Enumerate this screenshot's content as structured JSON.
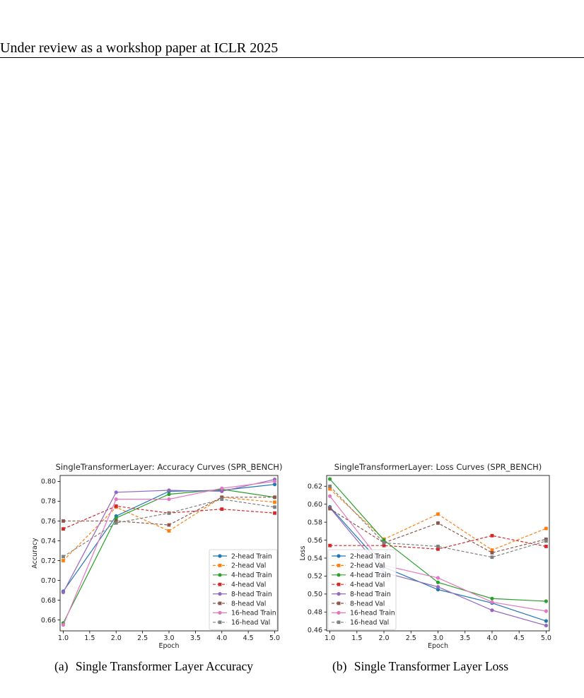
{
  "header": {
    "text": "Under review as a workshop paper at ICLR 2025"
  },
  "captions": [
    {
      "label": "(a)",
      "text": "Single Transformer Layer Accuracy"
    },
    {
      "label": "(b)",
      "text": "Single Transformer Layer Loss"
    }
  ],
  "colors": {
    "2-head": "#1f77b4",
    "4-head": "#2ca02c",
    "8-head": "#9467bd",
    "16-head": "#e377c2",
    "2-head-val": "#ff7f0e",
    "4-head-val": "#d62728",
    "8-head-val": "#8c564b",
    "16-head-val": "#7f7f7f"
  },
  "chart_data": [
    {
      "type": "line",
      "title": "SingleTransformerLayer: Accuracy Curves (SPR_BENCH)",
      "xlabel": "Epoch",
      "ylabel": "Accuracy",
      "xlim": [
        0.94,
        5.06
      ],
      "ylim": [
        0.649,
        0.806
      ],
      "xticks": [
        1.0,
        1.5,
        2.0,
        2.5,
        3.0,
        3.5,
        4.0,
        4.5,
        5.0
      ],
      "yticks": [
        0.66,
        0.68,
        0.7,
        0.72,
        0.74,
        0.76,
        0.78,
        0.8
      ],
      "xtick_labels": [
        "1.0",
        "1.5",
        "2.0",
        "2.5",
        "3.0",
        "3.5",
        "4.0",
        "4.5",
        "5.0"
      ],
      "ytick_labels": [
        "0.66",
        "0.68",
        "0.70",
        "0.72",
        "0.74",
        "0.76",
        "0.78",
        "0.80"
      ],
      "legend_position": "lower-right",
      "grid": false,
      "x": [
        1,
        2,
        3,
        4,
        5
      ],
      "series": [
        {
          "name": "2-head Train",
          "color": "#1f77b4",
          "dashed": false,
          "marker": "circle",
          "values": [
            0.689,
            0.765,
            0.79,
            0.791,
            0.797
          ]
        },
        {
          "name": "2-head Val",
          "color": "#ff7f0e",
          "dashed": true,
          "marker": "square",
          "values": [
            0.72,
            0.774,
            0.75,
            0.784,
            0.779
          ]
        },
        {
          "name": "4-head Train",
          "color": "#2ca02c",
          "dashed": false,
          "marker": "circle",
          "values": [
            0.657,
            0.763,
            0.787,
            0.792,
            0.784
          ]
        },
        {
          "name": "4-head Val",
          "color": "#d62728",
          "dashed": true,
          "marker": "square",
          "values": [
            0.752,
            0.775,
            0.768,
            0.772,
            0.768
          ]
        },
        {
          "name": "8-head Train",
          "color": "#9467bd",
          "dashed": false,
          "marker": "circle",
          "values": [
            0.688,
            0.789,
            0.791,
            0.79,
            0.802
          ]
        },
        {
          "name": "8-head Val",
          "color": "#8c564b",
          "dashed": true,
          "marker": "square",
          "values": [
            0.76,
            0.76,
            0.756,
            0.784,
            0.784
          ]
        },
        {
          "name": "16-head Train",
          "color": "#e377c2",
          "dashed": false,
          "marker": "circle",
          "values": [
            0.655,
            0.782,
            0.782,
            0.793,
            0.8
          ]
        },
        {
          "name": "16-head Val",
          "color": "#7f7f7f",
          "dashed": true,
          "marker": "square",
          "values": [
            0.724,
            0.758,
            0.768,
            0.782,
            0.774
          ]
        }
      ]
    },
    {
      "type": "line",
      "title": "SingleTransformerLayer: Loss Curves (SPR_BENCH)",
      "xlabel": "Epoch",
      "ylabel": "Loss",
      "xlim": [
        0.94,
        5.06
      ],
      "ylim": [
        0.459,
        0.632
      ],
      "xticks": [
        1.0,
        1.5,
        2.0,
        2.5,
        3.0,
        3.5,
        4.0,
        4.5,
        5.0
      ],
      "yticks": [
        0.46,
        0.48,
        0.5,
        0.52,
        0.54,
        0.56,
        0.58,
        0.6,
        0.62
      ],
      "xtick_labels": [
        "1.0",
        "1.5",
        "2.0",
        "2.5",
        "3.0",
        "3.5",
        "4.0",
        "4.5",
        "5.0"
      ],
      "ytick_labels": [
        "0.46",
        "0.48",
        "0.50",
        "0.52",
        "0.54",
        "0.56",
        "0.58",
        "0.60",
        "0.62"
      ],
      "legend_position": "lower-left",
      "grid": false,
      "x": [
        1,
        2,
        3,
        4,
        5
      ],
      "series": [
        {
          "name": "2-head Train",
          "color": "#1f77b4",
          "dashed": false,
          "marker": "circle",
          "values": [
            0.597,
            0.53,
            0.505,
            0.49,
            0.47
          ]
        },
        {
          "name": "2-head Val",
          "color": "#ff7f0e",
          "dashed": true,
          "marker": "square",
          "values": [
            0.617,
            0.561,
            0.589,
            0.549,
            0.573
          ]
        },
        {
          "name": "4-head Train",
          "color": "#2ca02c",
          "dashed": false,
          "marker": "circle",
          "values": [
            0.628,
            0.56,
            0.513,
            0.495,
            0.492
          ]
        },
        {
          "name": "4-head Val",
          "color": "#d62728",
          "dashed": true,
          "marker": "square",
          "values": [
            0.554,
            0.554,
            0.55,
            0.565,
            0.553
          ]
        },
        {
          "name": "8-head Train",
          "color": "#9467bd",
          "dashed": false,
          "marker": "circle",
          "values": [
            0.596,
            0.524,
            0.508,
            0.482,
            0.465
          ]
        },
        {
          "name": "8-head Val",
          "color": "#8c564b",
          "dashed": true,
          "marker": "square",
          "values": [
            0.595,
            0.557,
            0.579,
            0.546,
            0.561
          ]
        },
        {
          "name": "16-head Train",
          "color": "#e377c2",
          "dashed": false,
          "marker": "circle",
          "values": [
            0.609,
            0.532,
            0.518,
            0.491,
            0.481
          ]
        },
        {
          "name": "16-head Val",
          "color": "#7f7f7f",
          "dashed": true,
          "marker": "square",
          "values": [
            0.62,
            0.557,
            0.553,
            0.541,
            0.559
          ]
        }
      ]
    }
  ]
}
